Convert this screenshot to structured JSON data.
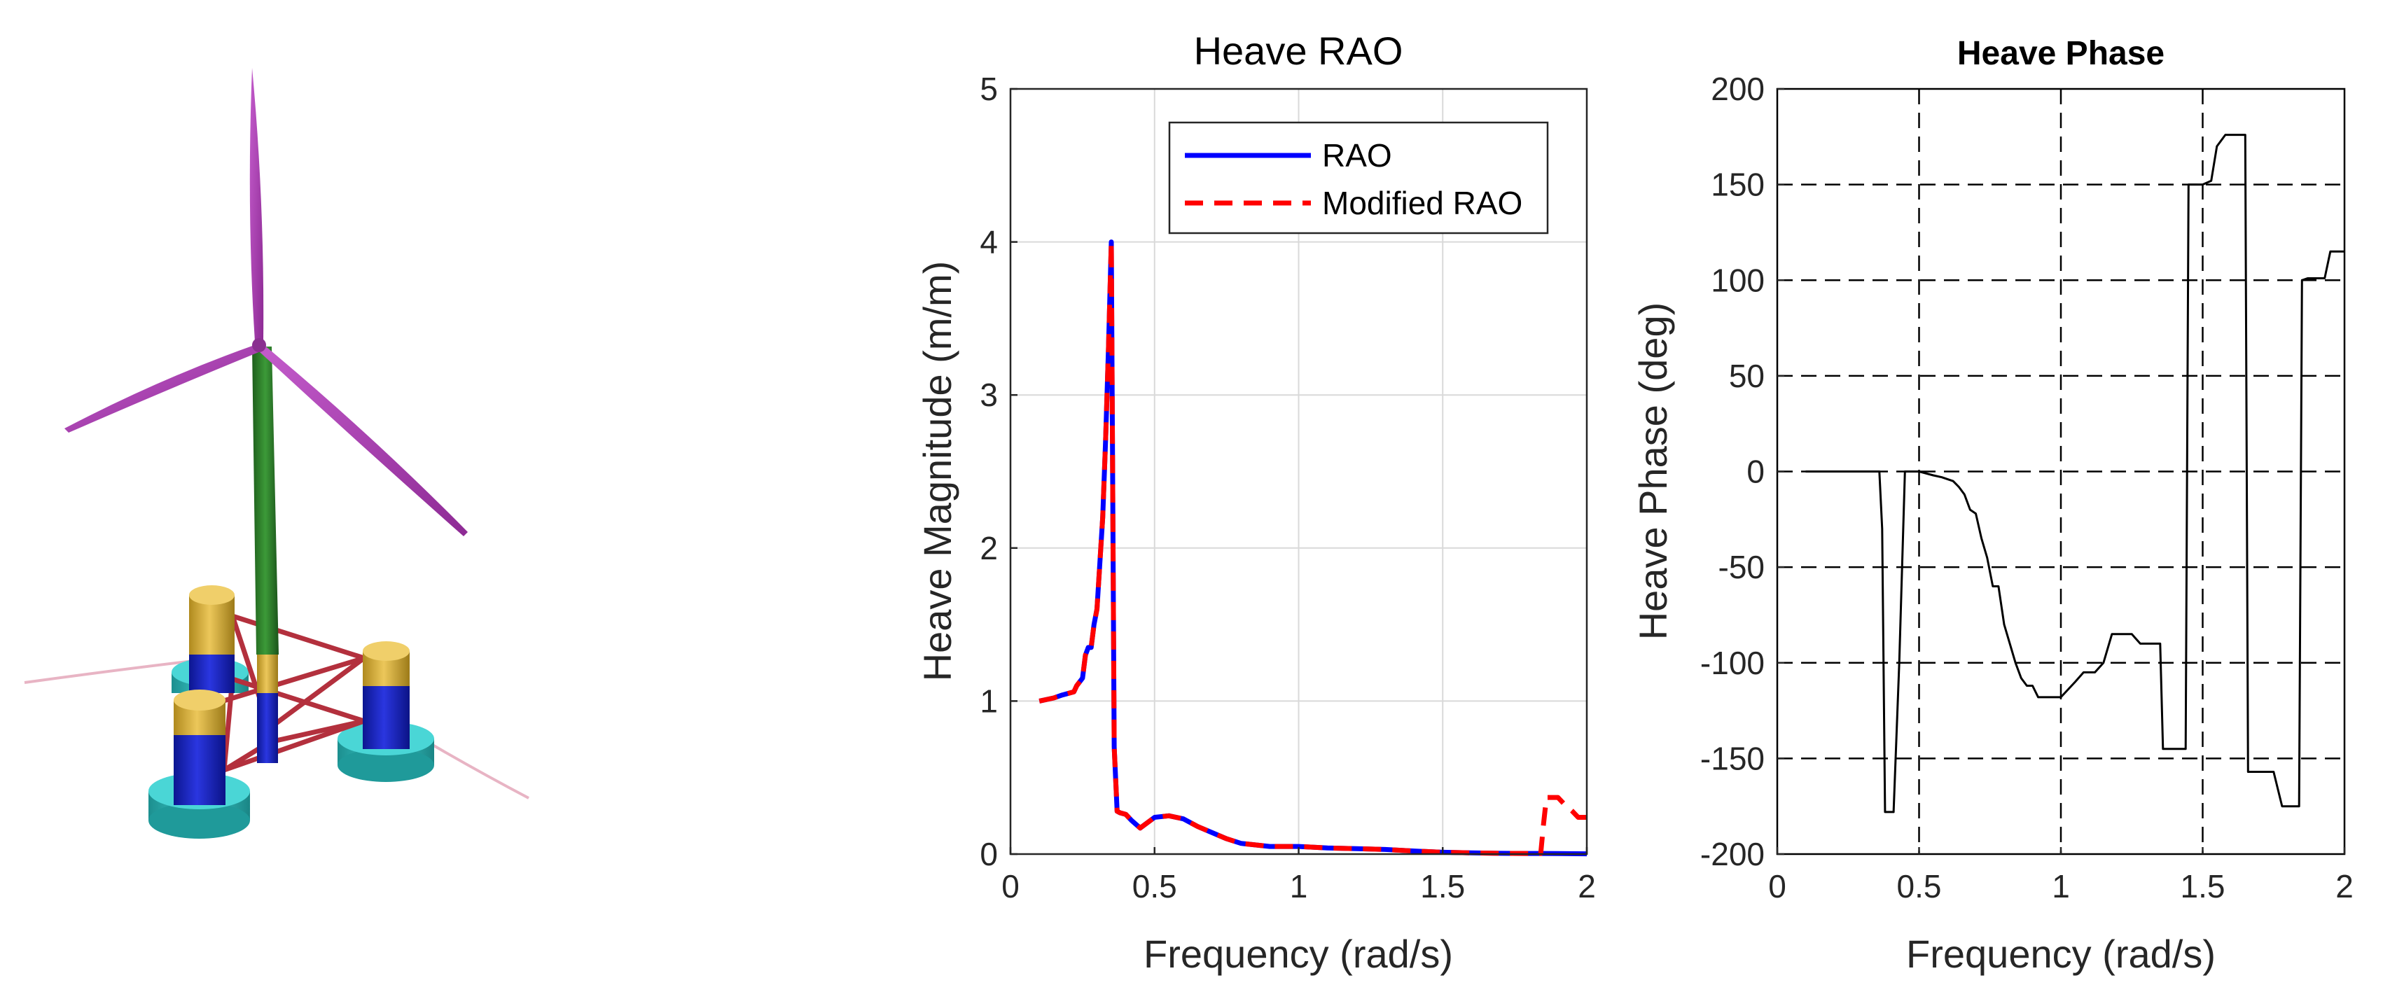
{
  "colors": {
    "rao": "#0000ff",
    "modified_rao": "#ff0000",
    "phase": "#000000",
    "grid": "#d9d9d9",
    "blade": "#a33aa8",
    "tower": "#2d7a2a",
    "column_top": "#d9b23a",
    "column_body": "#1b26c8",
    "heave_plate": "#2cb5b5",
    "brace": "#b3303d"
  },
  "turbine_illustration": {
    "icon": "floating-wind-turbine-icon"
  },
  "chart_data": [
    {
      "type": "line",
      "title": "Heave RAO",
      "xlabel": "Frequency (rad/s)",
      "ylabel": "Heave Magnitude (m/m)",
      "xlim": [
        0,
        2
      ],
      "ylim": [
        0,
        5
      ],
      "xticks": [
        0,
        0.5,
        1,
        1.5,
        2
      ],
      "xtick_labels": [
        "0",
        "0.5",
        "1",
        "1.5",
        "2"
      ],
      "yticks": [
        0,
        1,
        2,
        3,
        4,
        5
      ],
      "ytick_labels": [
        "0",
        "1",
        "2",
        "3",
        "4",
        "5"
      ],
      "grid": true,
      "legend": "top-right",
      "series": [
        {
          "name": "RAO",
          "style": "solid",
          "x": [
            0.1,
            0.15,
            0.18,
            0.2,
            0.22,
            0.23,
            0.25,
            0.26,
            0.27,
            0.28,
            0.29,
            0.3,
            0.31,
            0.32,
            0.33,
            0.34,
            0.35,
            0.36,
            0.37,
            0.38,
            0.4,
            0.42,
            0.45,
            0.5,
            0.55,
            0.6,
            0.65,
            0.7,
            0.75,
            0.8,
            0.9,
            1.0,
            1.1,
            1.2,
            1.3,
            1.4,
            1.5,
            1.6,
            1.7,
            1.8,
            1.84,
            1.9,
            2.0
          ],
          "y": [
            1.0,
            1.02,
            1.04,
            1.05,
            1.06,
            1.1,
            1.15,
            1.3,
            1.35,
            1.35,
            1.5,
            1.6,
            1.9,
            2.2,
            2.7,
            3.3,
            4.0,
            0.7,
            0.28,
            0.27,
            0.26,
            0.22,
            0.17,
            0.24,
            0.25,
            0.23,
            0.18,
            0.14,
            0.1,
            0.07,
            0.05,
            0.05,
            0.04,
            0.035,
            0.03,
            0.02,
            0.012,
            0.008,
            0.005,
            0.004,
            0.004,
            0.003,
            0.002
          ]
        },
        {
          "name": "Modified RAO",
          "style": "dashed",
          "x": [
            0.1,
            0.15,
            0.18,
            0.2,
            0.22,
            0.23,
            0.25,
            0.26,
            0.27,
            0.28,
            0.29,
            0.3,
            0.31,
            0.32,
            0.33,
            0.34,
            0.35,
            0.36,
            0.37,
            0.38,
            0.4,
            0.42,
            0.45,
            0.5,
            0.55,
            0.6,
            0.65,
            0.7,
            0.75,
            0.8,
            0.9,
            1.0,
            1.1,
            1.2,
            1.3,
            1.4,
            1.5,
            1.6,
            1.7,
            1.8,
            1.84,
            1.85,
            1.86,
            1.9,
            1.92,
            1.95,
            1.97,
            2.0
          ],
          "y": [
            1.0,
            1.02,
            1.04,
            1.05,
            1.06,
            1.1,
            1.15,
            1.3,
            1.35,
            1.35,
            1.5,
            1.6,
            1.9,
            2.2,
            2.7,
            3.3,
            4.0,
            0.7,
            0.28,
            0.27,
            0.26,
            0.22,
            0.17,
            0.24,
            0.25,
            0.23,
            0.18,
            0.14,
            0.1,
            0.07,
            0.05,
            0.05,
            0.04,
            0.035,
            0.03,
            0.02,
            0.012,
            0.008,
            0.005,
            0.004,
            0.004,
            0.2,
            0.37,
            0.37,
            0.33,
            0.28,
            0.24,
            0.24
          ]
        }
      ]
    },
    {
      "type": "line",
      "title": "Heave Phase",
      "xlabel": "Frequency (rad/s)",
      "ylabel": "Heave Phase (deg)",
      "xlim": [
        0,
        2
      ],
      "ylim": [
        -200,
        200
      ],
      "xticks": [
        0,
        0.5,
        1,
        1.5,
        2
      ],
      "xtick_labels": [
        "0",
        "0.5",
        "1",
        "1.5",
        "2"
      ],
      "yticks": [
        -200,
        -150,
        -100,
        -50,
        0,
        50,
        100,
        150,
        200
      ],
      "ytick_labels": [
        "-200",
        "-150",
        "-100",
        "-50",
        "0",
        "50",
        "100",
        "150",
        "200"
      ],
      "grid": true,
      "grid_style": "dashed",
      "series": [
        {
          "name": "Heave Phase",
          "style": "solid",
          "x": [
            0.1,
            0.36,
            0.37,
            0.38,
            0.41,
            0.43,
            0.45,
            0.5,
            0.55,
            0.58,
            0.62,
            0.64,
            0.66,
            0.68,
            0.7,
            0.72,
            0.74,
            0.76,
            0.78,
            0.8,
            0.82,
            0.84,
            0.86,
            0.88,
            0.9,
            0.92,
            0.95,
            1.0,
            1.05,
            1.08,
            1.12,
            1.15,
            1.18,
            1.2,
            1.25,
            1.28,
            1.31,
            1.33,
            1.35,
            1.36,
            1.38,
            1.44,
            1.45,
            1.47,
            1.5,
            1.53,
            1.55,
            1.58,
            1.65,
            1.66,
            1.75,
            1.78,
            1.84,
            1.85,
            1.87,
            1.93,
            1.95,
            2.0
          ],
          "y": [
            0,
            0,
            -30,
            -178,
            -178,
            -100,
            0,
            0,
            -2,
            -3,
            -5,
            -8,
            -12,
            -20,
            -22,
            -35,
            -45,
            -60,
            -60,
            -80,
            -90,
            -100,
            -108,
            -112,
            -112,
            -118,
            -118,
            -118,
            -110,
            -105,
            -105,
            -100,
            -85,
            -85,
            -85,
            -90,
            -90,
            -90,
            -90,
            -145,
            -145,
            -145,
            150,
            150,
            150,
            152,
            170,
            176,
            176,
            -157,
            -157,
            -175,
            -175,
            100,
            101,
            101,
            115,
            115
          ]
        }
      ]
    }
  ]
}
